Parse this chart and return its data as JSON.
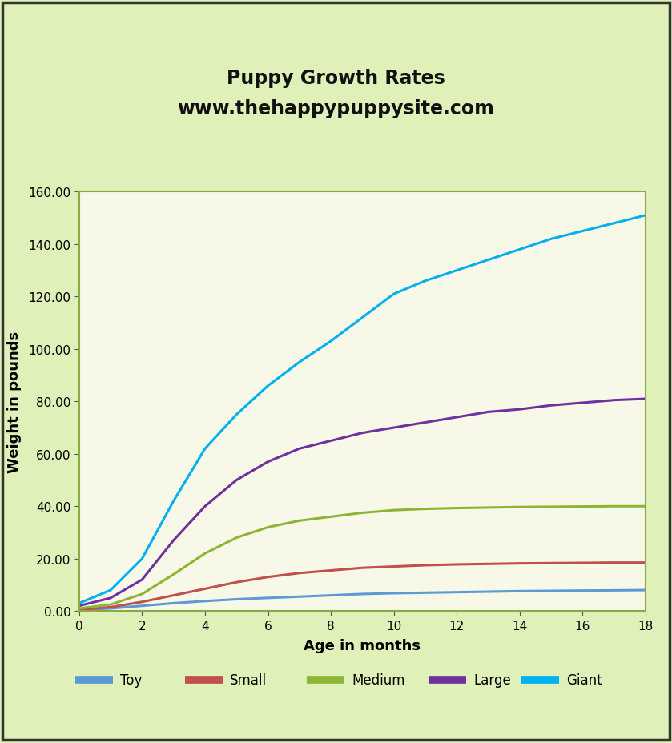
{
  "title": "Puppy Growth Rates\nwww.thehappypuppysite.com",
  "xlabel": "Age in months",
  "ylabel": "Weight in pounds",
  "bg_color": "#dff0b8",
  "plot_bg_color": "#f8f8e8",
  "border_color": "#8aaa44",
  "x": [
    0,
    1,
    2,
    3,
    4,
    5,
    6,
    7,
    8,
    9,
    10,
    11,
    12,
    13,
    14,
    15,
    16,
    17,
    18
  ],
  "series": {
    "Toy": {
      "color": "#5b9bd5",
      "values": [
        0.5,
        1.0,
        2.0,
        3.0,
        3.8,
        4.5,
        5.0,
        5.5,
        6.0,
        6.5,
        6.8,
        7.0,
        7.2,
        7.4,
        7.6,
        7.7,
        7.8,
        7.9,
        8.0
      ]
    },
    "Small": {
      "color": "#c0504d",
      "values": [
        0.5,
        1.5,
        3.5,
        6.0,
        8.5,
        11.0,
        13.0,
        14.5,
        15.5,
        16.5,
        17.0,
        17.5,
        17.8,
        18.0,
        18.2,
        18.3,
        18.4,
        18.5,
        18.5
      ]
    },
    "Medium": {
      "color": "#8db535",
      "values": [
        1.0,
        2.5,
        6.5,
        14.0,
        22.0,
        28.0,
        32.0,
        34.5,
        36.0,
        37.5,
        38.5,
        39.0,
        39.3,
        39.5,
        39.7,
        39.8,
        39.9,
        40.0,
        40.0
      ]
    },
    "Large": {
      "color": "#7030a0",
      "values": [
        2.0,
        5.0,
        12.0,
        27.0,
        40.0,
        50.0,
        57.0,
        62.0,
        65.0,
        68.0,
        70.0,
        72.0,
        74.0,
        76.0,
        77.0,
        78.5,
        79.5,
        80.5,
        81.0
      ]
    },
    "Giant": {
      "color": "#00b0f0",
      "values": [
        3.0,
        8.0,
        20.0,
        42.0,
        62.0,
        75.0,
        86.0,
        95.0,
        103.0,
        112.0,
        121.0,
        126.0,
        130.0,
        134.0,
        138.0,
        142.0,
        145.0,
        148.0,
        151.0
      ]
    }
  },
  "ylim": [
    0,
    160
  ],
  "yticks": [
    0,
    20,
    40,
    60,
    80,
    100,
    120,
    140,
    160
  ],
  "xticks": [
    0,
    2,
    4,
    6,
    8,
    10,
    12,
    14,
    16,
    18
  ],
  "legend_bg": "#f8f8e0",
  "line_width": 2.2,
  "title_fontsize": 17,
  "axis_label_fontsize": 13,
  "tick_fontsize": 11
}
